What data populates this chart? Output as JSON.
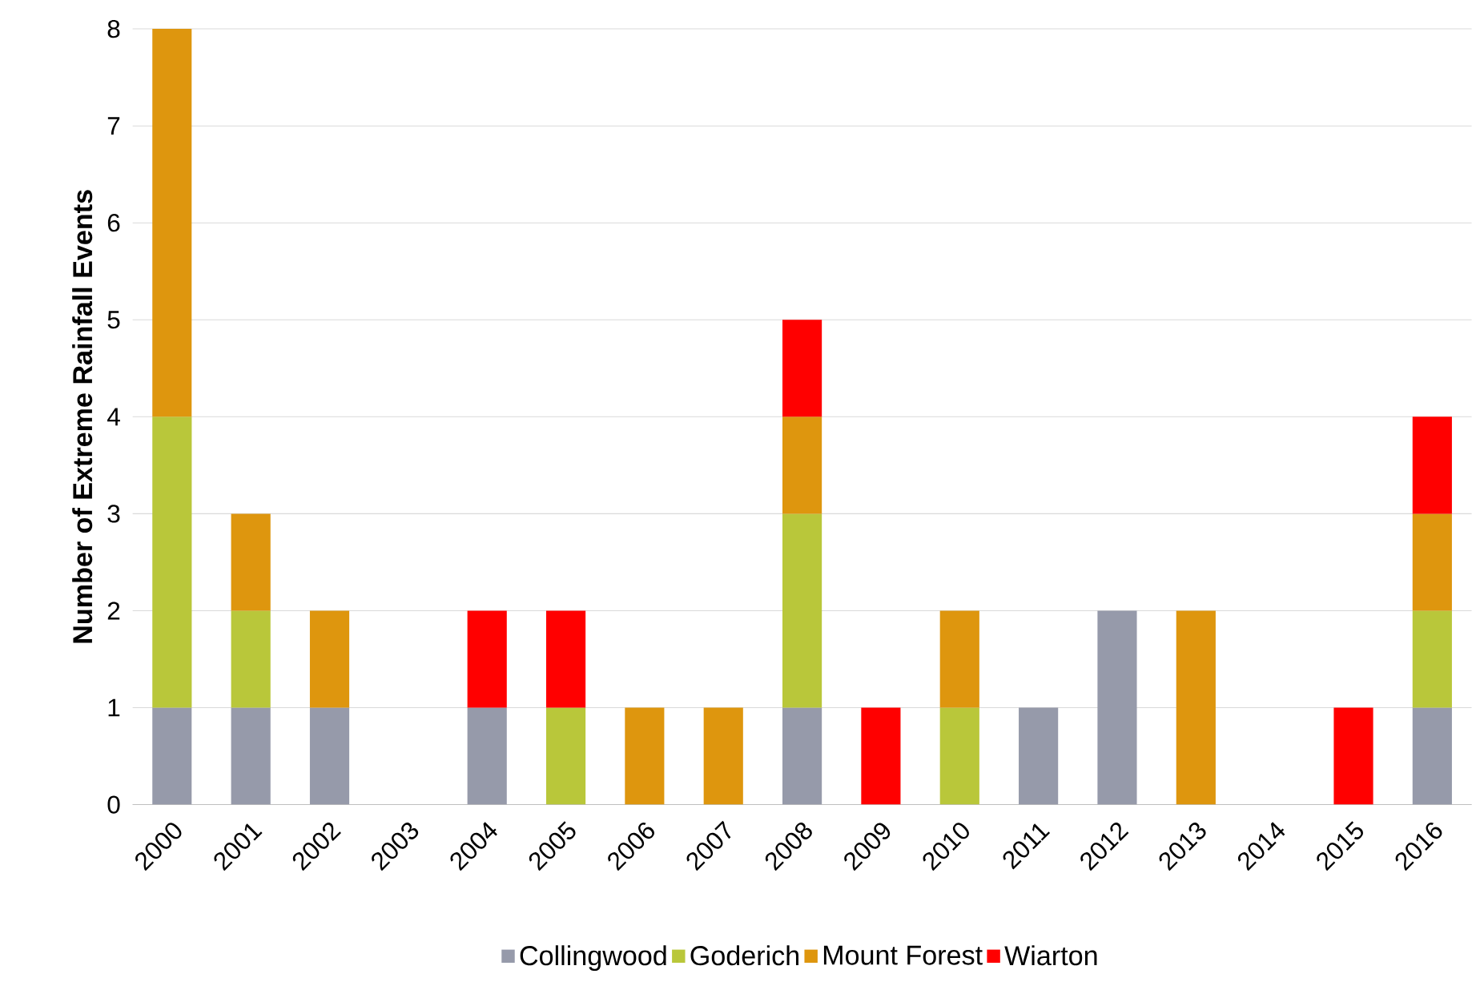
{
  "chart_data": {
    "type": "bar",
    "stacked": true,
    "ylabel": "Number of Extreme Rainfall Events",
    "categories": [
      "2000",
      "2001",
      "2002",
      "2003",
      "2004",
      "2005",
      "2006",
      "2007",
      "2008",
      "2009",
      "2010",
      "2011",
      "2012",
      "2013",
      "2014",
      "2015",
      "2016"
    ],
    "series": [
      {
        "name": "Collingwood",
        "color": "#969aaa",
        "values": [
          1,
          1,
          1,
          0,
          1,
          0,
          0,
          0,
          1,
          0,
          0,
          1,
          2,
          0,
          0,
          0,
          1
        ]
      },
      {
        "name": "Goderich",
        "color": "#b9c73a",
        "values": [
          3,
          1,
          0,
          0,
          0,
          1,
          0,
          0,
          2,
          0,
          1,
          0,
          0,
          0,
          0,
          0,
          1
        ]
      },
      {
        "name": "Mount Forest",
        "color": "#de960e",
        "values": [
          4,
          1,
          1,
          0,
          0,
          0,
          1,
          1,
          1,
          0,
          1,
          0,
          0,
          2,
          0,
          0,
          1
        ]
      },
      {
        "name": "Wiarton",
        "color": "#ff0000",
        "values": [
          0,
          0,
          0,
          0,
          1,
          1,
          0,
          0,
          1,
          1,
          0,
          0,
          0,
          0,
          0,
          1,
          1
        ]
      }
    ],
    "ylim": [
      0,
      8
    ],
    "yticks": [
      0,
      1,
      2,
      3,
      4,
      5,
      6,
      7,
      8
    ],
    "grid": "y",
    "legend": "bottom"
  }
}
